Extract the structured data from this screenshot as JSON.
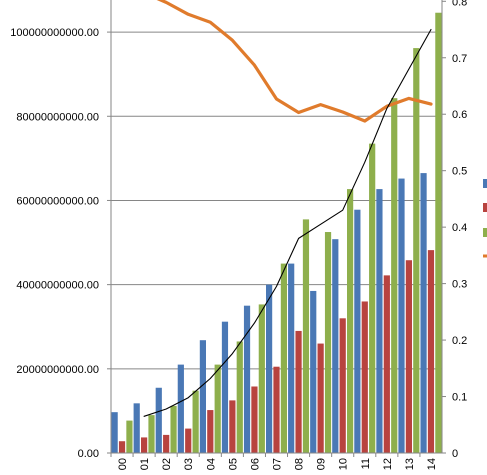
{
  "chart_data": {
    "type": "bar",
    "categories": [
      "00",
      "01",
      "02",
      "03",
      "04",
      "05",
      "06",
      "07",
      "08",
      "09",
      "10",
      "11",
      "12",
      "13",
      "14"
    ],
    "y_left": {
      "ylim": [
        0,
        110000000000
      ],
      "ticks": [
        0,
        20000000000,
        40000000000,
        60000000000,
        80000000000,
        100000000000
      ],
      "tick_labels": [
        "0.00",
        "20000000000.00",
        "40000000000.00",
        "60000000000.00",
        "80000000000.00",
        "100000000000.00"
      ]
    },
    "y_right": {
      "ylim": [
        0,
        0.82
      ],
      "ticks": [
        0,
        0.1,
        0.2,
        0.3,
        0.4,
        0.5,
        0.6,
        0.7,
        0.8
      ],
      "tick_labels": [
        "0",
        "0.1",
        "0.2",
        "0.3",
        "0.4",
        "0.5",
        "0.6",
        "0.7",
        "0.8"
      ]
    },
    "series": [
      {
        "type": "bar",
        "axis": "left",
        "color": "#4a78b5",
        "values": [
          9700000000,
          11800000000,
          15500000000,
          21000000000,
          26800000000,
          31200000000,
          35000000000,
          40000000000,
          45000000000,
          38500000000,
          50800000000,
          57800000000,
          62700000000,
          65200000000,
          66500000000
        ]
      },
      {
        "type": "bar",
        "axis": "left",
        "color": "#b8433f",
        "values": [
          2800000000,
          3700000000,
          4300000000,
          5800000000,
          10200000000,
          12500000000,
          15800000000,
          20500000000,
          29000000000,
          26000000000,
          32000000000,
          36000000000,
          42200000000,
          45800000000,
          48200000000
        ]
      },
      {
        "type": "bar",
        "axis": "left",
        "color": "#8eaf4c",
        "values": [
          7700000000,
          9000000000,
          11200000000,
          14800000000,
          21000000000,
          26500000000,
          35300000000,
          45000000000,
          55500000000,
          52500000000,
          62700000000,
          73500000000,
          84300000000,
          96200000000,
          104600000000
        ]
      },
      {
        "type": "line",
        "axis": "right",
        "color": "#e07b2c",
        "values": [
          0.825,
          0.815,
          0.798,
          0.777,
          0.763,
          0.731,
          0.687,
          0.627,
          0.603,
          0.617,
          0.604,
          0.588,
          0.614,
          0.628,
          0.618
        ]
      },
      {
        "type": "line",
        "axis": "right",
        "color": "#000000",
        "values": [
          null,
          0.065,
          0.078,
          0.098,
          0.132,
          0.176,
          0.23,
          0.295,
          0.38,
          0.405,
          0.43,
          0.515,
          0.61,
          0.68,
          0.75
        ]
      }
    ],
    "legend": {
      "position": "right",
      "items": [
        "#4a78b5",
        "#b8433f",
        "#8eaf4c",
        "#e07b2c"
      ]
    },
    "grid": true
  }
}
